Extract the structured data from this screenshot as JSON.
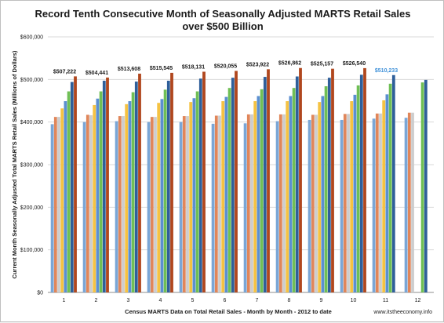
{
  "chart_data": {
    "type": "bar",
    "title_lines": [
      "Record Tenth Consecutive Month of Seasonally Adjusted MARTS Retail Sales",
      "over $500 Billion"
    ],
    "ylabel": "Current Month Seasonally Adjusted Total MARTS Retail Sales (Millions of Dollars)",
    "xlabel": "Census MARTS Data on Total Retail Sales - Month by Month - 2012 to date",
    "source_note": "www.itstheeconomy.info",
    "ylim": [
      0,
      600000
    ],
    "yticks": [
      0,
      100000,
      200000,
      300000,
      400000,
      500000,
      600000
    ],
    "ytick_labels": [
      "$0",
      "$100,000",
      "$200,000",
      "$300,000",
      "$400,000",
      "$500,000",
      "$600,000"
    ],
    "grid": true,
    "categories": [
      "1",
      "2",
      "3",
      "4",
      "5",
      "6",
      "7",
      "8",
      "9",
      "10",
      "11",
      "12"
    ],
    "series": [
      {
        "color": "#7aa6d6",
        "values": [
          395000,
          400000,
          402000,
          400000,
          400000,
          396000,
          397000,
          402000,
          405000,
          405000,
          408000,
          410000
        ]
      },
      {
        "color": "#e0865a",
        "values": [
          412000,
          417000,
          414000,
          412000,
          414000,
          415000,
          418000,
          418000,
          417000,
          419000,
          420000,
          422000
        ]
      },
      {
        "color": "#cdcdcd",
        "values": [
          412000,
          416000,
          414000,
          412000,
          414000,
          415000,
          418000,
          418000,
          417000,
          419000,
          420000,
          422000
        ]
      },
      {
        "color": "#f5c242",
        "values": [
          432000,
          440000,
          442000,
          445000,
          447000,
          449000,
          449000,
          449000,
          447000,
          449000,
          451000,
          null
        ]
      },
      {
        "color": "#5b8fd1",
        "values": [
          449000,
          455000,
          449000,
          454000,
          456000,
          459000,
          461000,
          461000,
          461000,
          464000,
          465000,
          null
        ]
      },
      {
        "color": "#6fbf55",
        "values": [
          472000,
          472000,
          470000,
          476000,
          472000,
          480000,
          477000,
          480000,
          484000,
          486000,
          490000,
          493000
        ]
      },
      {
        "color": "#2f5f9a",
        "values": [
          494000,
          497000,
          495000,
          497000,
          502000,
          504000,
          506000,
          507000,
          504000,
          511000,
          510233,
          499000
        ]
      },
      {
        "color": "#b0471e",
        "values": [
          507222,
          504441,
          513608,
          515545,
          518131,
          520055,
          523922,
          526862,
          525157,
          526540,
          null,
          null
        ]
      }
    ],
    "data_labels": [
      "$507,222",
      "$504,441",
      "$513,608",
      "$515,545",
      "$518,131",
      "$520,055",
      "$523,922",
      "$526,862",
      "$525,157",
      "$526,540",
      "$510,233",
      ""
    ],
    "data_label_colors": [
      "#1a1a1a",
      "#1a1a1a",
      "#1a1a1a",
      "#1a1a1a",
      "#1a1a1a",
      "#1a1a1a",
      "#1a1a1a",
      "#1a1a1a",
      "#1a1a1a",
      "#1a1a1a",
      "#3c8fd8",
      "#1a1a1a"
    ]
  }
}
